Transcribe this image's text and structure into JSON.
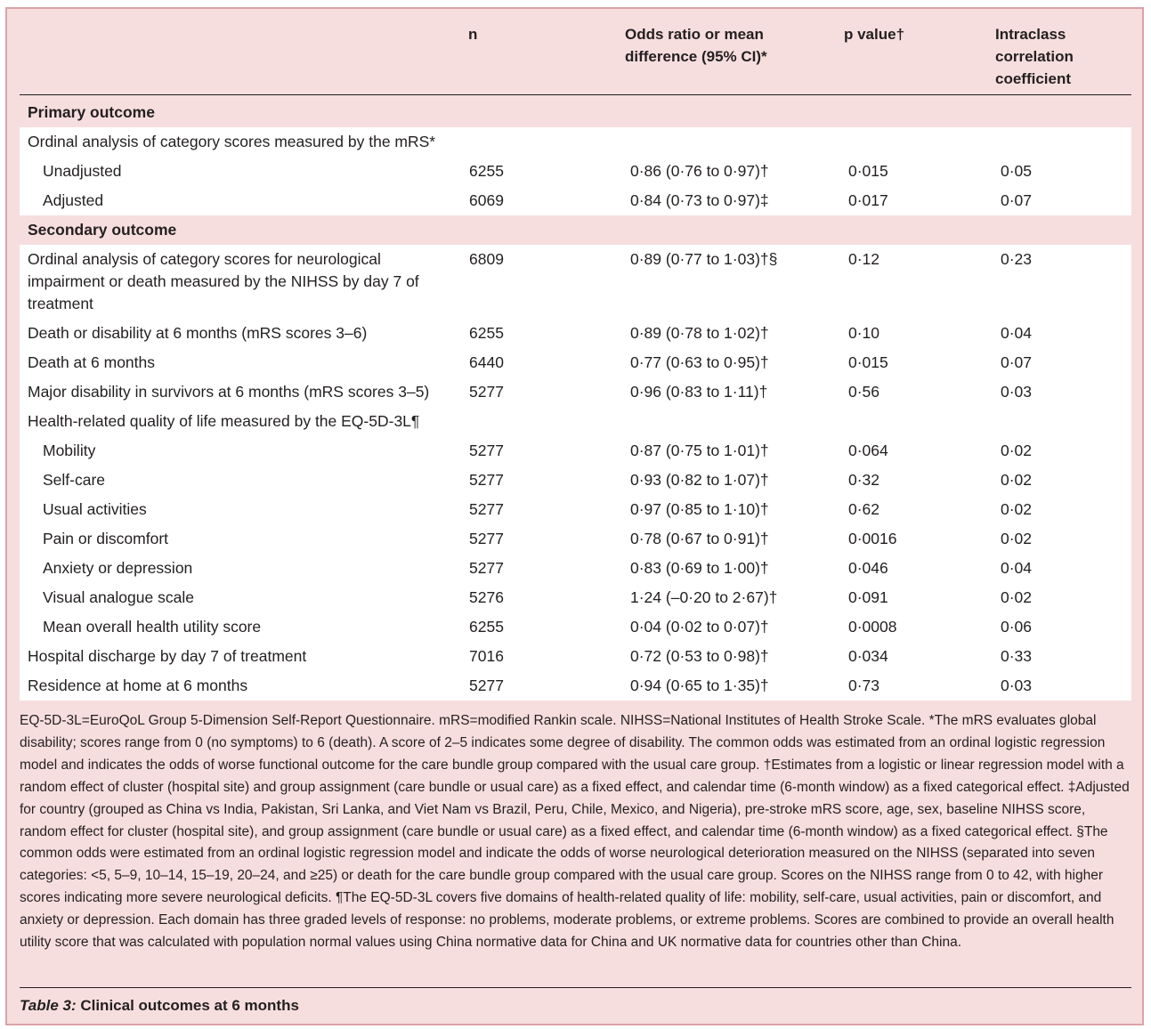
{
  "header": {
    "n": "n",
    "or_line1": "Odds ratio or mean",
    "or_line2": "difference (95% CI)*",
    "p": "p value†",
    "icc_line1": "Intraclass",
    "icc_line2": "correlation",
    "icc_line3": "coefficient"
  },
  "rows": [
    {
      "label": "Primary outcome"
    },
    {
      "label": "Ordinal analysis of category scores measured by the mRS*"
    },
    {
      "label": "Unadjusted",
      "n": "6255",
      "or": "0·86 (0·76 to 0·97)†",
      "p": "0·015",
      "icc": "0·05"
    },
    {
      "label": "Adjusted",
      "n": "6069",
      "or": "0·84 (0·73 to 0·97)‡",
      "p": "0·017",
      "icc": "0·07"
    },
    {
      "label": "Secondary outcome"
    },
    {
      "label": "Ordinal analysis of category scores for neurological impairment or death measured by the NIHSS by day 7 of treatment",
      "n": "6809",
      "or": "0·89 (0·77 to 1·03)†§",
      "p": "0·12",
      "icc": "0·23"
    },
    {
      "label": "Death or disability at 6 months (mRS scores 3–6)",
      "n": "6255",
      "or": "0·89 (0·78 to 1·02)†",
      "p": "0·10",
      "icc": "0·04"
    },
    {
      "label": "Death at 6 months",
      "n": "6440",
      "or": "0·77 (0·63 to 0·95)†",
      "p": "0·015",
      "icc": "0·07"
    },
    {
      "label": "Major disability in survivors at 6 months (mRS scores 3–5)",
      "n": "5277",
      "or": "0·96 (0·83 to 1·11)†",
      "p": "0·56",
      "icc": "0·03"
    },
    {
      "label": "Health-related quality of life measured by the EQ-5D-3L¶"
    },
    {
      "label": "Mobility",
      "n": "5277",
      "or": "0·87 (0·75 to 1·01)†",
      "p": "0·064",
      "icc": "0·02"
    },
    {
      "label": "Self-care",
      "n": "5277",
      "or": "0·93 (0·82 to 1·07)†",
      "p": "0·32",
      "icc": "0·02"
    },
    {
      "label": "Usual activities",
      "n": "5277",
      "or": "0·97 (0·85 to 1·10)†",
      "p": "0·62",
      "icc": "0·02"
    },
    {
      "label": "Pain or discomfort",
      "n": "5277",
      "or": "0·78 (0·67 to 0·91)†",
      "p": "0·0016",
      "icc": "0·02"
    },
    {
      "label": "Anxiety or depression",
      "n": "5277",
      "or": "0·83 (0·69 to 1·00)†",
      "p": "0·046",
      "icc": "0·04"
    },
    {
      "label": "Visual analogue scale",
      "n": "5276",
      "or": "1·24 (–0·20 to 2·67)†",
      "p": "0·091",
      "icc": "0·02"
    },
    {
      "label": "Mean overall health utility score",
      "n": "6255",
      "or": "0·04 (0·02 to 0·07)†",
      "p": "0·0008",
      "icc": "0·06"
    },
    {
      "label": "Hospital discharge by day 7 of treatment",
      "n": "7016",
      "or": "0·72 (0·53 to 0·98)†",
      "p": "0·034",
      "icc": "0·33"
    },
    {
      "label": "Residence at home at 6 months",
      "n": "5277",
      "or": "0·94 (0·65 to 1·35)†",
      "p": "0·73",
      "icc": "0·03"
    }
  ],
  "footnote": "EQ-5D-3L=EuroQoL Group 5-Dimension Self-Report Questionnaire. mRS=modified Rankin scale. NIHSS=National Institutes of Health Stroke Scale. *The mRS evaluates global disability; scores range from 0 (no symptoms) to 6 (death). A score of 2–5 indicates some degree of disability. The common odds was estimated from an ordinal logistic regression model and indicates the odds of worse functional outcome for the care bundle group compared with the usual care group. †Estimates from a logistic or linear regression model with a random effect of cluster (hospital site) and group assignment (care bundle or usual care) as a fixed effect, and calendar time (6-month window) as a fixed categorical effect. ‡Adjusted for country (grouped as China vs India, Pakistan, Sri Lanka, and Viet Nam vs Brazil, Peru, Chile, Mexico, and Nigeria), pre-stroke mRS score, age, sex, baseline NIHSS score, random effect for cluster (hospital site), and group assignment (care bundle or usual care) as a fixed effect, and calendar time (6-month window) as a fixed categorical effect. §The common odds were estimated from an ordinal logistic regression model and indicate the odds of worse neurological deterioration measured on the NIHSS (separated into seven categories: <5, 5–9, 10–14, 15–19, 20–24, and ≥25) or death for the care bundle group compared with the usual care group. Scores on the NIHSS range from 0 to 42, with higher scores indicating more severe neurological deficits. ¶The EQ-5D-3L covers five domains of health-related quality of life: mobility, self-care, usual activities, pain or discomfort, and anxiety or depression. Each domain has three graded levels of response: no problems, moderate problems, or extreme problems. Scores are combined to provide an overall health utility score that was calculated with population normal values using China normative data for China and UK normative data for countries other than China.",
  "caption": {
    "label": "Table 3:",
    "title": " Clinical outcomes at 6 months"
  }
}
